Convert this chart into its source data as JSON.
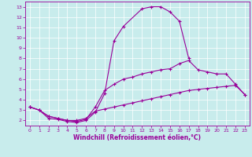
{
  "xlabel": "Windchill (Refroidissement éolien,°C)",
  "background_color": "#c8ecec",
  "line_color": "#990099",
  "grid_color": "#ffffff",
  "xlim": [
    -0.5,
    23.5
  ],
  "ylim": [
    1.5,
    13.5
  ],
  "yticks": [
    2,
    3,
    4,
    5,
    6,
    7,
    8,
    9,
    10,
    11,
    12,
    13
  ],
  "xticks": [
    0,
    1,
    2,
    3,
    4,
    5,
    6,
    7,
    8,
    9,
    10,
    11,
    12,
    13,
    14,
    15,
    16,
    17,
    18,
    19,
    20,
    21,
    22,
    23
  ],
  "line1_x": [
    0,
    1,
    2,
    3,
    4,
    5,
    6,
    7,
    8,
    9,
    10,
    12,
    13,
    14,
    15,
    16,
    17
  ],
  "line1_y": [
    3.3,
    3.0,
    2.2,
    2.1,
    1.9,
    1.8,
    2.0,
    2.8,
    4.6,
    9.7,
    11.1,
    12.8,
    13.0,
    13.0,
    12.5,
    11.6,
    8.0
  ],
  "line2_x": [
    0,
    1,
    2,
    3,
    4,
    5,
    6,
    7,
    8,
    9,
    10,
    11,
    12,
    13,
    14,
    15,
    16,
    17,
    18,
    19,
    20,
    21,
    22,
    23
  ],
  "line2_y": [
    3.3,
    3.0,
    2.4,
    2.2,
    2.0,
    1.9,
    2.1,
    3.3,
    4.9,
    5.5,
    6.0,
    6.2,
    6.5,
    6.7,
    6.9,
    7.0,
    7.5,
    7.8,
    6.9,
    6.7,
    6.5,
    6.5,
    5.5,
    4.5
  ],
  "line3_x": [
    0,
    1,
    2,
    3,
    4,
    5,
    6,
    7,
    8,
    9,
    10,
    11,
    12,
    13,
    14,
    15,
    16,
    17,
    18,
    19,
    20,
    21,
    22,
    23
  ],
  "line3_y": [
    3.3,
    3.0,
    2.4,
    2.2,
    2.0,
    2.0,
    2.2,
    2.9,
    3.1,
    3.3,
    3.5,
    3.7,
    3.9,
    4.1,
    4.3,
    4.5,
    4.7,
    4.9,
    5.0,
    5.1,
    5.2,
    5.3,
    5.4,
    4.5
  ]
}
